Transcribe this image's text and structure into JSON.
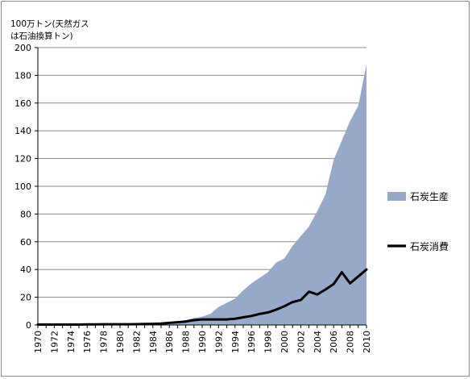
{
  "chart_data": {
    "type": "area",
    "ylabel": [
      "100万トン(天然ガス",
      "は石油換算トン)"
    ],
    "ylim": [
      0,
      200
    ],
    "yticks": [
      0,
      20,
      40,
      60,
      80,
      100,
      120,
      140,
      160,
      180,
      200
    ],
    "xticks": [
      "1970",
      "1972",
      "1974",
      "1976",
      "1978",
      "1980",
      "1982",
      "1984",
      "1986",
      "1988",
      "1990",
      "1992",
      "1994",
      "1996",
      "1998",
      "2000",
      "2002",
      "2004",
      "2006",
      "2008",
      "2010"
    ],
    "x": [
      1970,
      1971,
      1972,
      1973,
      1974,
      1975,
      1976,
      1977,
      1978,
      1979,
      1980,
      1981,
      1982,
      1983,
      1984,
      1985,
      1986,
      1987,
      1988,
      1989,
      1990,
      1991,
      1992,
      1993,
      1994,
      1995,
      1996,
      1997,
      1998,
      1999,
      2000,
      2001,
      2002,
      2003,
      2004,
      2005,
      2006,
      2007,
      2008,
      2009,
      2010
    ],
    "series": [
      {
        "name": "石炭生産",
        "kind": "area",
        "color": "#97a9c9",
        "values": [
          0.2,
          0.2,
          0.2,
          0.2,
          0.3,
          0.3,
          0.3,
          0.4,
          0.4,
          0.5,
          0.5,
          0.6,
          0.7,
          0.8,
          1.0,
          1.5,
          2.0,
          2.5,
          3.5,
          5.0,
          6.0,
          8.0,
          13.0,
          16.0,
          19.0,
          25.0,
          30.0,
          34.0,
          38.0,
          45.0,
          48.0,
          57.0,
          64.0,
          71.0,
          82.0,
          94.0,
          119.0,
          133.0,
          147.0,
          158.0,
          188.0
        ]
      },
      {
        "name": "石炭消費",
        "kind": "line",
        "color": "#000000",
        "values": [
          0.3,
          0.3,
          0.3,
          0.3,
          0.3,
          0.3,
          0.4,
          0.4,
          0.5,
          0.5,
          0.5,
          0.5,
          0.6,
          0.7,
          0.8,
          1.0,
          1.5,
          2.0,
          2.5,
          3.5,
          4.0,
          4.0,
          4.0,
          4.0,
          4.5,
          5.5,
          6.5,
          8.0,
          9.0,
          11.0,
          13.5,
          16.5,
          18.0,
          24.0,
          22.0,
          25.5,
          29.5,
          38.0,
          30.0,
          35.0,
          40.0
        ]
      }
    ],
    "legend": {
      "placement": "right",
      "entries": [
        "石炭生産",
        "石炭消費"
      ]
    }
  }
}
